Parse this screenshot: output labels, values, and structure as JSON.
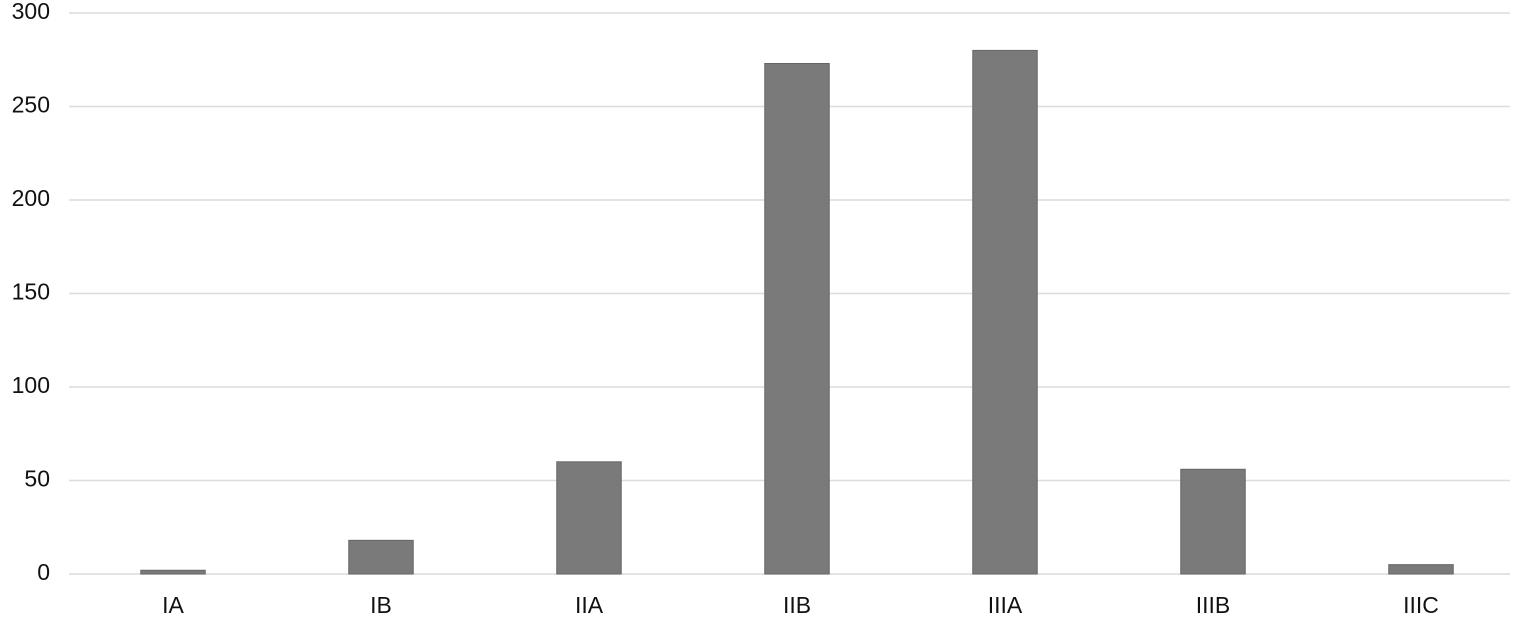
{
  "chart_data": {
    "type": "bar",
    "categories": [
      "IA",
      "IB",
      "IIA",
      "IIB",
      "IIIA",
      "IIIB",
      "IIIC"
    ],
    "values": [
      2,
      18,
      60,
      273,
      280,
      56,
      5
    ],
    "color": "#7a7a7a",
    "ylim": [
      0,
      300
    ],
    "yticks": [
      0,
      50,
      100,
      150,
      200,
      250,
      300
    ],
    "grid": true
  }
}
